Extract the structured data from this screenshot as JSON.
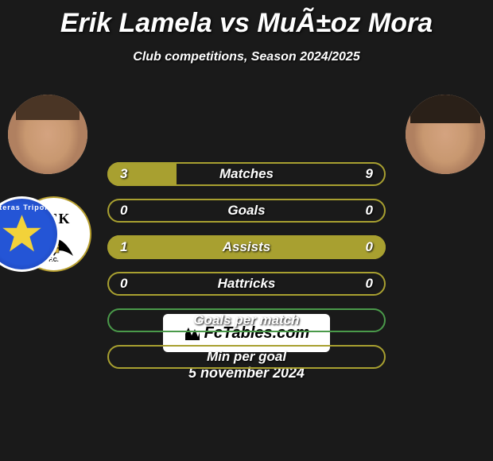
{
  "title": "Erik Lamela vs MuÃ±oz Mora",
  "subtitle": "Club competitions, Season 2024/2025",
  "date": "5 november 2024",
  "attribution": "FcTables.com",
  "colors": {
    "background": "#1a1a1a",
    "text": "#ffffff",
    "border_olive": "#a8a030",
    "border_green": "#4a9a4a",
    "fill_olive": "#a8a030",
    "player1_club_bg": "#ffffff",
    "player2_club_bg": "#2455d6",
    "player2_club_star": "#f2d23a"
  },
  "player1": {
    "name": "Erik Lamela",
    "club": "AEK",
    "club_sub": "F.C."
  },
  "player2": {
    "name": "MuÃ±oz Mora",
    "club_top": "Asteras Tripolis",
    "club_bot": ""
  },
  "bars": [
    {
      "label": "Matches",
      "left": "3",
      "right": "9",
      "border": "#a8a030",
      "fill_left_pct": 25,
      "fill_color": "#a8a030"
    },
    {
      "label": "Goals",
      "left": "0",
      "right": "0",
      "border": "#a8a030",
      "fill_left_pct": 0,
      "fill_color": "#a8a030"
    },
    {
      "label": "Assists",
      "left": "1",
      "right": "0",
      "border": "#a8a030",
      "fill_left_pct": 100,
      "fill_color": "#a8a030"
    },
    {
      "label": "Hattricks",
      "left": "0",
      "right": "0",
      "border": "#a8a030",
      "fill_left_pct": 0,
      "fill_color": "#a8a030"
    },
    {
      "label": "Goals per match",
      "left": "",
      "right": "",
      "border": "#4a9a4a",
      "fill_left_pct": 0,
      "fill_color": "#4a9a4a"
    },
    {
      "label": "Min per goal",
      "left": "",
      "right": "",
      "border": "#a8a030",
      "fill_left_pct": 0,
      "fill_color": "#a8a030"
    }
  ]
}
